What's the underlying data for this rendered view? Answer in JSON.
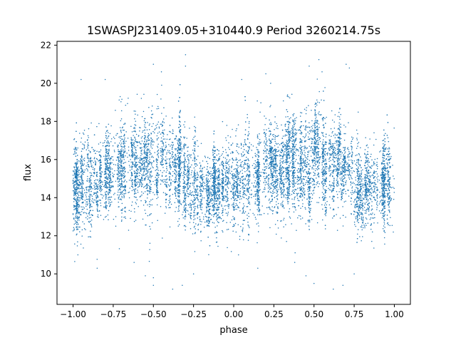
{
  "chart_data": {
    "type": "scatter",
    "title": "1SWASPJ231409.05+310440.9 Period 3260214.75s",
    "xlabel": "phase",
    "ylabel": "flux",
    "xlim": [
      -1.1,
      1.1
    ],
    "ylim": [
      8.4,
      22.2
    ],
    "x_ticks": [
      -1.0,
      -0.75,
      -0.5,
      -0.25,
      0.0,
      0.25,
      0.5,
      0.75,
      1.0
    ],
    "x_tick_labels": [
      "−1.00",
      "−0.75",
      "−0.50",
      "−0.25",
      "0.00",
      "0.25",
      "0.50",
      "0.75",
      "1.00"
    ],
    "y_ticks": [
      10,
      12,
      14,
      16,
      18,
      20,
      22
    ],
    "y_tick_labels": [
      "10",
      "12",
      "14",
      "16",
      "18",
      "20",
      "22"
    ],
    "grid": false,
    "legend": "none",
    "point_color": "#1f77b4",
    "marker_size": 1,
    "x_range": [
      -1.0,
      1.0
    ],
    "trend": {
      "phase": [
        -1.0,
        -0.95,
        -0.9,
        -0.85,
        -0.8,
        -0.75,
        -0.7,
        -0.65,
        -0.6,
        -0.55,
        -0.5,
        -0.45,
        -0.4,
        -0.35,
        -0.3,
        -0.25,
        -0.2,
        -0.15,
        -0.1,
        -0.05,
        0.0,
        0.05,
        0.1,
        0.15,
        0.2,
        0.25,
        0.3,
        0.35,
        0.4,
        0.45,
        0.5,
        0.55,
        0.6,
        0.65,
        0.7,
        0.75,
        0.8,
        0.85,
        0.9,
        0.95,
        1.0
      ],
      "flux_median": [
        14.7,
        14.5,
        14.8,
        15.2,
        15.3,
        15.6,
        15.8,
        15.7,
        15.6,
        15.8,
        16.0,
        16.1,
        15.8,
        15.4,
        15.0,
        14.6,
        14.4,
        14.3,
        14.5,
        14.8,
        14.6,
        14.9,
        15.1,
        15.3,
        15.4,
        15.6,
        15.8,
        15.7,
        15.6,
        15.8,
        16.0,
        16.1,
        15.8,
        15.4,
        15.0,
        14.6,
        14.4,
        14.3,
        14.5,
        14.8,
        14.7
      ],
      "flux_spread": [
        1.4,
        1.3,
        1.3,
        1.2,
        1.2,
        1.4,
        1.4,
        1.3,
        1.4,
        1.5,
        1.6,
        1.6,
        1.4,
        1.3,
        1.2,
        1.2,
        1.1,
        1.1,
        1.2,
        1.3,
        1.4,
        1.3,
        1.3,
        1.2,
        1.2,
        1.4,
        1.4,
        1.3,
        1.4,
        1.5,
        1.6,
        1.6,
        1.4,
        1.3,
        1.2,
        1.2,
        1.1,
        1.1,
        1.2,
        1.3,
        1.4
      ]
    },
    "outliers": [
      {
        "x": -0.95,
        "y": 20.2
      },
      {
        "x": -0.8,
        "y": 20.2
      },
      {
        "x": -0.5,
        "y": 21.0
      },
      {
        "x": -0.45,
        "y": 20.6
      },
      {
        "x": -0.3,
        "y": 21.5
      },
      {
        "x": -0.3,
        "y": 20.9
      },
      {
        "x": 0.05,
        "y": 20.2
      },
      {
        "x": 0.2,
        "y": 20.5
      },
      {
        "x": 0.23,
        "y": 20.0
      },
      {
        "x": 0.47,
        "y": 20.9
      },
      {
        "x": 0.55,
        "y": 20.6
      },
      {
        "x": 0.7,
        "y": 21.0
      },
      {
        "x": 0.72,
        "y": 20.8
      },
      {
        "x": -0.55,
        "y": 9.9
      },
      {
        "x": -0.5,
        "y": 9.8
      },
      {
        "x": -0.5,
        "y": 9.4
      },
      {
        "x": -0.38,
        "y": 9.2
      },
      {
        "x": -0.32,
        "y": 9.4
      },
      {
        "x": -0.25,
        "y": 10.0
      },
      {
        "x": 0.45,
        "y": 9.9
      },
      {
        "x": 0.5,
        "y": 9.5
      },
      {
        "x": 0.62,
        "y": 9.2
      },
      {
        "x": 0.68,
        "y": 9.4
      },
      {
        "x": 0.75,
        "y": 10.0
      },
      {
        "x": -0.85,
        "y": 10.3
      },
      {
        "x": 0.15,
        "y": 10.3
      },
      {
        "x": -0.97,
        "y": 11.0
      },
      {
        "x": 0.03,
        "y": 11.0
      },
      {
        "x": -0.62,
        "y": 10.6
      },
      {
        "x": 0.38,
        "y": 10.6
      }
    ]
  }
}
